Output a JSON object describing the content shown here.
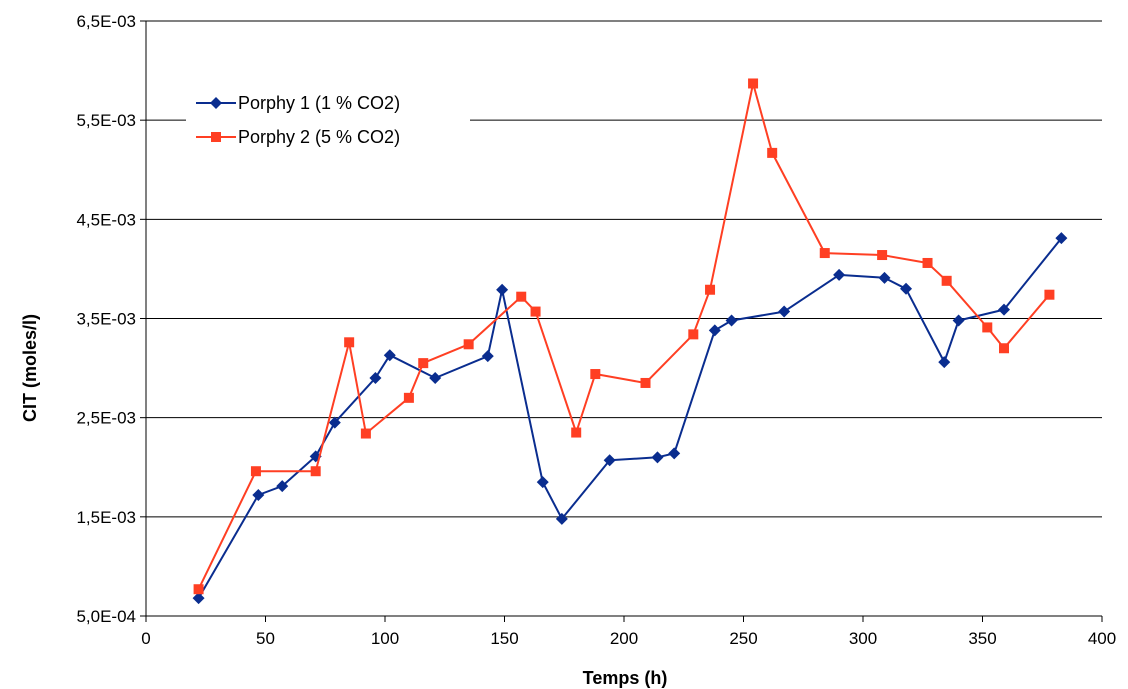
{
  "chart_data": {
    "type": "line",
    "xlabel": "Temps (h)",
    "ylabel": "CIT (moles/l)",
    "xlim": [
      0,
      400
    ],
    "ylim": [
      0.0005,
      0.0065
    ],
    "xticks": [
      "0",
      "50",
      "100",
      "150",
      "200",
      "250",
      "300",
      "350",
      "400"
    ],
    "yticks": [
      "5,0E-04",
      "1,5E-03",
      "2,5E-03",
      "3,5E-03",
      "4,5E-03",
      "5,5E-03",
      "6,5E-03"
    ],
    "grid": "horizontal",
    "legend_position": "top-left",
    "series": [
      {
        "name": "Porphy 1 (1 % CO2)",
        "color": "#0a2d8f",
        "marker": "diamond",
        "x": [
          22,
          47,
          57,
          71,
          79,
          96,
          102,
          121,
          143,
          149,
          166,
          174,
          194,
          214,
          221,
          238,
          245,
          267,
          290,
          309,
          318,
          334,
          340,
          359,
          383
        ],
        "y": [
          0.00068,
          0.00172,
          0.00181,
          0.00211,
          0.00245,
          0.0029,
          0.00313,
          0.0029,
          0.00312,
          0.00379,
          0.00185,
          0.00148,
          0.00207,
          0.0021,
          0.00214,
          0.00338,
          0.00348,
          0.00357,
          0.00394,
          0.00391,
          0.0038,
          0.00306,
          0.00348,
          0.00359,
          0.00431
        ]
      },
      {
        "name": "Porphy 2 (5 % CO2)",
        "color": "#ff3f23",
        "marker": "square",
        "x": [
          22,
          46,
          71,
          85,
          92,
          110,
          116,
          135,
          157,
          163,
          180,
          188,
          209,
          229,
          236,
          254,
          262,
          284,
          308,
          327,
          335,
          352,
          359,
          378
        ],
        "y": [
          0.00077,
          0.00196,
          0.00196,
          0.00326,
          0.00234,
          0.0027,
          0.00305,
          0.00324,
          0.00372,
          0.00357,
          0.00235,
          0.00294,
          0.00285,
          0.00334,
          0.00379,
          0.00587,
          0.00517,
          0.00416,
          0.00414,
          0.00406,
          0.00388,
          0.00341,
          0.0032,
          0.00374
        ]
      }
    ]
  }
}
